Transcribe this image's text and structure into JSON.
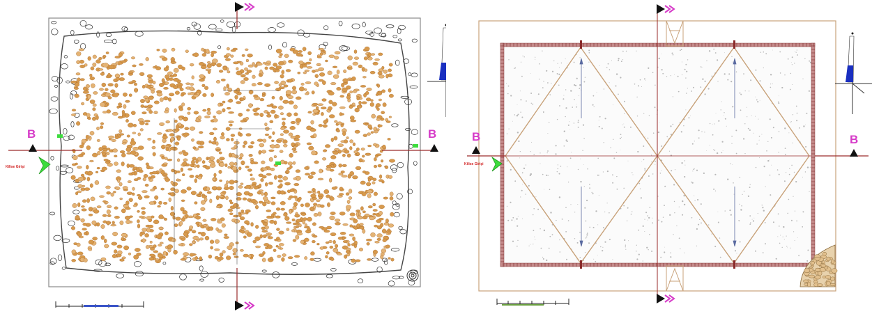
{
  "left_plan": {
    "section_label_left": "B",
    "section_label_right": "B",
    "entrance_label": "Kilise Girişi"
  },
  "right_plan": {
    "section_label_left": "B",
    "section_label_right": "B",
    "entrance_label": "Kilise Girişi"
  },
  "colors": {
    "section_marker": "#d63bc8",
    "entrance_arrow": "#3ddc3d",
    "stone_fill": "#d79a4d",
    "section_line": "#9a2a2a",
    "wall_brick": "#b47474",
    "north_arrow": "#1a2fc0"
  },
  "icons": [
    "north-arrow-icon",
    "section-arrow-icon",
    "entrance-arrow-icon",
    "scale-bar-icon"
  ]
}
